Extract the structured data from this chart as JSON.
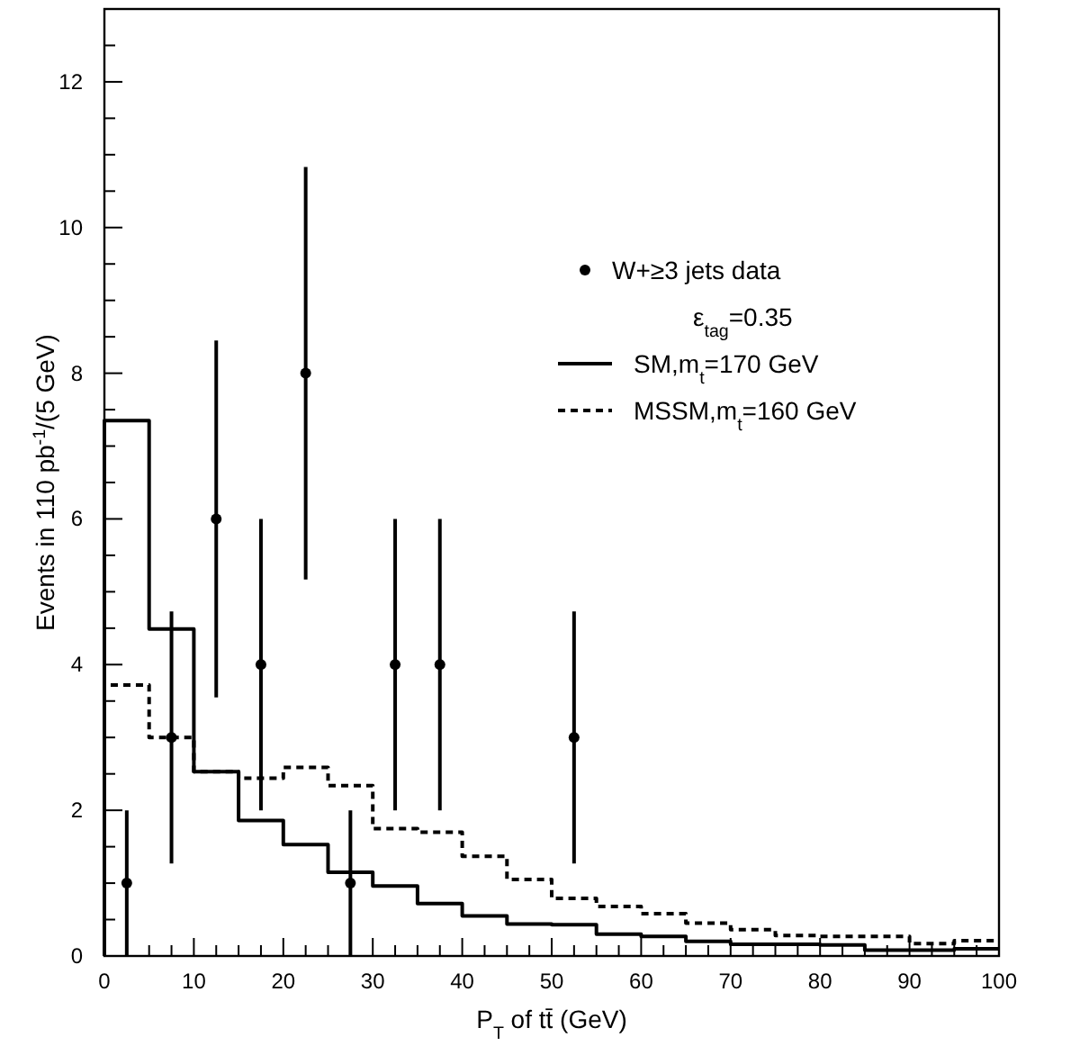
{
  "chart_data": {
    "type": "histogram",
    "xlabel": "P$_{T}$ of tt̄ (GeV)",
    "ylabel": "Events in 110 pb$^{-1}$/(5 GeV)",
    "bins": [
      0,
      5,
      10,
      15,
      20,
      25,
      30,
      35,
      40,
      45,
      50,
      55,
      60,
      65,
      70,
      75,
      80,
      85,
      90,
      95,
      100
    ],
    "series": [
      {
        "name": "W+≥3 jets data",
        "type": "scatter",
        "color": "#000000",
        "marker": "circle",
        "x": [
          2.5,
          7.5,
          12.5,
          17.5,
          22.5,
          27.5,
          32.5,
          37.5,
          52.5
        ],
        "values": [
          1,
          3,
          6,
          4,
          8,
          1,
          4,
          4,
          3
        ],
        "errors": [
          1,
          1.73,
          2.45,
          2,
          2.83,
          1,
          2,
          2,
          1.73
        ]
      },
      {
        "name": "SM,m$_{t}$=170 GeV",
        "color": "#000000",
        "line_style": "solid",
        "values": [
          7.35,
          4.49,
          2.53,
          1.86,
          1.53,
          1.15,
          0.96,
          0.72,
          0.55,
          0.44,
          0.43,
          0.3,
          0.27,
          0.2,
          0.16,
          0.16,
          0.15,
          0.08,
          0.08,
          0.1
        ]
      },
      {
        "name": "MSSM,m$_{t}$=160 GeV",
        "color": "#000000",
        "line_style": "dashed",
        "values": [
          3.72,
          3.0,
          2.53,
          2.44,
          2.59,
          2.34,
          1.75,
          1.7,
          1.37,
          1.05,
          0.79,
          0.68,
          0.58,
          0.45,
          0.36,
          0.28,
          0.27,
          0.27,
          0.17,
          0.21
        ]
      }
    ],
    "annotations": [
      "ε$_{tag}$=0.35"
    ],
    "legend": "top right",
    "xlim": [
      0,
      100
    ],
    "ylim": [
      0,
      13
    ],
    "xticks": [
      0,
      {
        "value": 2.5,
        "label": null
      },
      {
        "value": 5,
        "label": null
      },
      {
        "value": 7.5,
        "label": null
      },
      10,
      {
        "value": 12.5,
        "label": null
      },
      {
        "value": 15,
        "label": null
      },
      {
        "value": 17.5,
        "label": null
      },
      20,
      {
        "value": 22.5,
        "label": null
      },
      {
        "value": 25,
        "label": null
      },
      {
        "value": 27.5,
        "label": null
      },
      30,
      {
        "value": 32.5,
        "label": null
      },
      {
        "value": 35,
        "label": null
      },
      {
        "value": 37.5,
        "label": null
      },
      40,
      {
        "value": 42.5,
        "label": null
      },
      {
        "value": 45,
        "label": null
      },
      {
        "value": 47.5,
        "label": null
      },
      50,
      {
        "value": 52.5,
        "label": null
      },
      {
        "value": 55,
        "label": null
      },
      {
        "value": 57.5,
        "label": null
      },
      60,
      {
        "value": 62.5,
        "label": null
      },
      {
        "value": 65,
        "label": null
      },
      {
        "value": 67.5,
        "label": null
      },
      70,
      {
        "value": 72.5,
        "label": null
      },
      {
        "value": 75,
        "label": null
      },
      {
        "value": 77.5,
        "label": null
      },
      80,
      {
        "value": 82.5,
        "label": null
      },
      {
        "value": 85,
        "label": null
      },
      {
        "value": 87.5,
        "label": null
      },
      90,
      {
        "value": 92.5,
        "label": null
      },
      {
        "value": 95,
        "label": null
      },
      {
        "value": 97.5,
        "label": null
      },
      100
    ],
    "yticks": [
      0,
      {
        "value": 0.5,
        "label": null
      },
      {
        "value": 1,
        "label": null
      },
      {
        "value": 1.5,
        "label": null
      },
      2,
      {
        "value": 2.5,
        "label": null
      },
      {
        "value": 3,
        "label": null
      },
      {
        "value": 3.5,
        "label": null
      },
      4,
      {
        "value": 4.5,
        "label": null
      },
      {
        "value": 5,
        "label": null
      },
      {
        "value": 5.5,
        "label": null
      },
      6,
      {
        "value": 6.5,
        "label": null
      },
      {
        "value": 7,
        "label": null
      },
      {
        "value": 7.5,
        "label": null
      },
      8,
      {
        "value": 8.5,
        "label": null
      },
      {
        "value": 9,
        "label": null
      },
      {
        "value": 9.5,
        "label": null
      },
      10,
      {
        "value": 10.5,
        "label": null
      },
      {
        "value": 11,
        "label": null
      },
      {
        "value": 11.5,
        "label": null
      },
      12,
      {
        "value": 12.5,
        "label": null
      }
    ]
  }
}
